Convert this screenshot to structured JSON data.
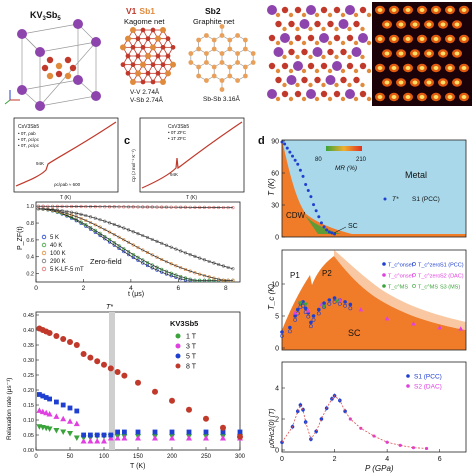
{
  "top": {
    "compound_a": "KV",
    "compound_a_sub1": "3",
    "compound_a_rest": "Sb",
    "compound_a_sub2": "5",
    "v1": "V1",
    "sb1": "Sb1",
    "kagome": "Kagome net",
    "sb2": "Sb2",
    "graphite": "Graphite net",
    "vv": "V-V 2.74Å",
    "vsb": "V-Sb 2.74Å",
    "sbsb": "Sb-Sb 3.16Å"
  },
  "panel_b": {
    "legend1": "CsV3Sb5",
    "legend2": "• 0T, ρab",
    "legend3": "• 0T, ρc/ρc",
    "legend4": "• 0T, ρc/ρc",
    "annot": "94K",
    "ratio": "ρc/ρab ≈ 600",
    "xlabel": "T (K)"
  },
  "panel_c": {
    "label": "c",
    "legend1": "CsV3Sb5",
    "legend2": "• 0T ZFC",
    "legend3": "• 1T ZFC",
    "annot": "94K",
    "ylabel": "Cp (J mol⁻¹ K⁻¹)",
    "xlabel": "T (K)"
  },
  "panel_mu": {
    "ylabel": "P_ZF(t)",
    "xlabel": "t (μs)",
    "title": "Zero-field",
    "ticks_x": [
      "0",
      "2",
      "4",
      "6",
      "8"
    ],
    "ticks_y": [
      "0.2",
      "0.4",
      "0.6",
      "0.8",
      "1.0"
    ],
    "legend": [
      "5 K",
      "40 K",
      "100 K",
      "290 K",
      "5 K-LF-5 mT"
    ]
  },
  "panel_relax": {
    "compound": "KV3Sb5",
    "ylabel": "Relaxation rate (μs⁻¹)",
    "xlabel": "T (K)",
    "tstar": "T*",
    "ticks_x": [
      "0",
      "50",
      "100",
      "150",
      "200",
      "250",
      "300"
    ],
    "ticks_y": [
      "0.00",
      "0.05",
      "0.10",
      "0.15",
      "0.20",
      "0.25",
      "0.30",
      "0.35",
      "0.40",
      "0.45"
    ],
    "legend": [
      "1 T",
      "3 T",
      "5 T",
      "8 T"
    ]
  },
  "panel_d": {
    "label": "d",
    "ylabel_top": "T (K)",
    "ylabel_mid": "T_c (K)",
    "ylabel_bot": "μ0Hc2(0) (T)",
    "xlabel": "P (GPa)",
    "ticks_x": [
      "0",
      "2",
      "4",
      "6"
    ],
    "ticks_top_y": [
      "0",
      "30",
      "60",
      "90"
    ],
    "ticks_mid_y": [
      "0",
      "5",
      "10"
    ],
    "ticks_bot_y": [
      "0",
      "2",
      "4"
    ],
    "colorbar_min": "80",
    "colorbar_max": "210",
    "mr_label": "MR (%)",
    "metal": "Metal",
    "cdw": "CDW",
    "sc_top": "SC",
    "tstar_legend": "T*",
    "s1_pcc": "S1 (PCC)",
    "p1": "P1",
    "p2": "P2",
    "sc_mid": "SC",
    "mid_legend": [
      "T_c^onset",
      "T_c^zero",
      "S1 (PCC)",
      "T_c^onset",
      "T_c^zero",
      "S2 (DAC)",
      "T_c^MS",
      "T_c^MS",
      "S3 (MS)"
    ],
    "bot_legend": [
      "S1 (PCC)",
      "S2 (DAC)"
    ]
  },
  "colors": {
    "red": "#c0392b",
    "blue": "#1f3fd1",
    "green": "#3aa33a",
    "magenta": "#e040e0",
    "orange": "#f07c2a",
    "lightblue": "#a8d8ea",
    "purple": "#8e44ad"
  }
}
